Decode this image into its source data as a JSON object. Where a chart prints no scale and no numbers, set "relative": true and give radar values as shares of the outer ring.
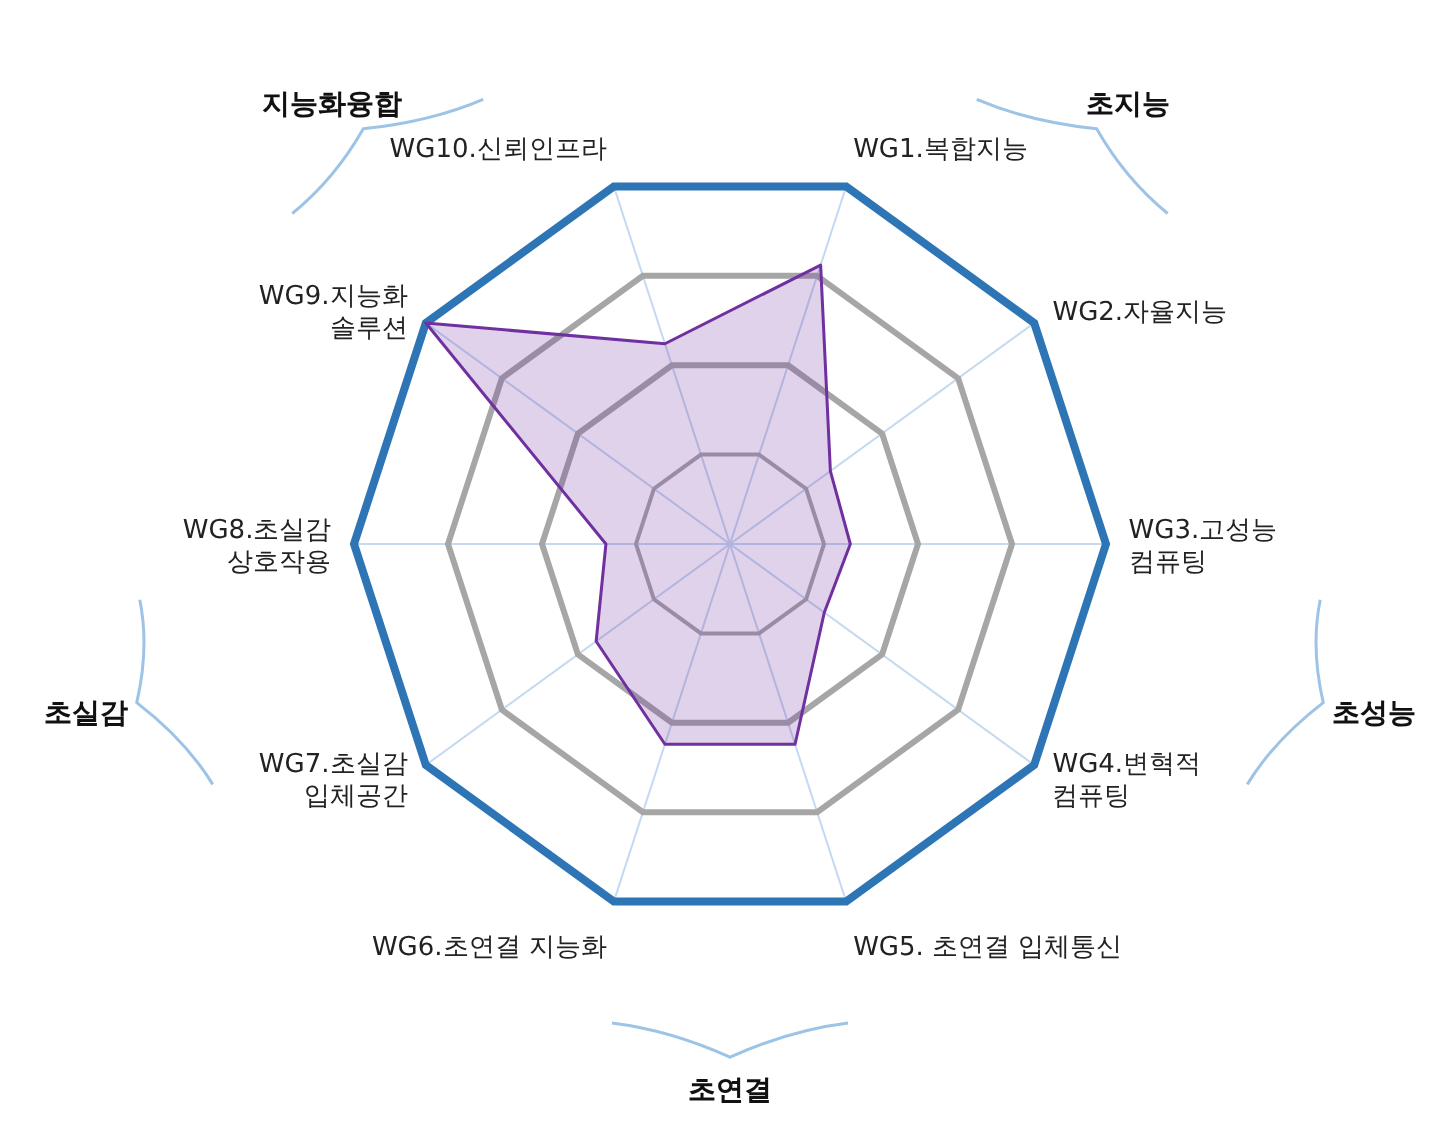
{
  "chart_data": {
    "type": "radar",
    "relative": true,
    "grid": true,
    "categories": [
      "WG1.복합지능",
      "WG2.자율지능",
      "WG3.고성능\n컴퓨팅",
      "WG4.변혁적\n컴퓨팅",
      "WG5. 초연결 입체통신",
      "WG6.초연결 지능화",
      "WG7.초실감\n입체공간",
      "WG8.초실감\n상호작용",
      "WG9.지능화\n솔루션",
      "WG10.신뢰인프라"
    ],
    "series": [
      {
        "color": "#7030a0",
        "values": [
          0.78,
          0.33,
          0.32,
          0.31,
          0.56,
          0.56,
          0.44,
          0.33,
          1.0,
          0.56
        ]
      }
    ],
    "annotations": [
      "초지능",
      "초성능",
      "초연결",
      "초실감",
      "지능화융합"
    ]
  }
}
